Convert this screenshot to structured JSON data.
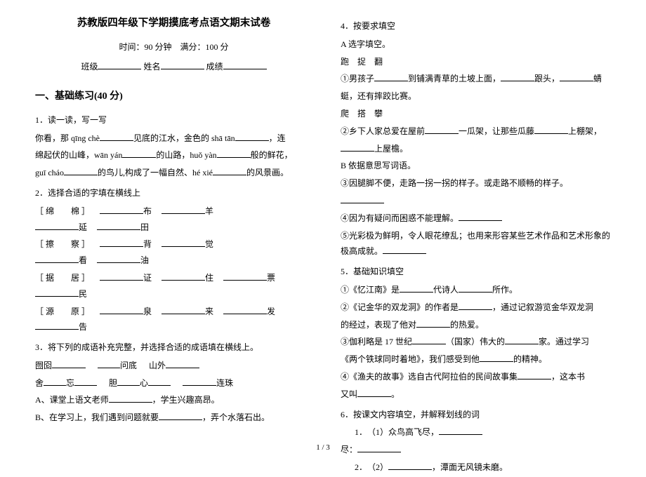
{
  "header": {
    "title": "苏教版四年级下学期摸底考点语文期末试卷",
    "subtitle": "时间：90 分钟　满分：100 分",
    "class_label": "班级",
    "name_label": "姓名",
    "score_label": "成绩"
  },
  "section1": {
    "heading": "一、基础练习(40 分)"
  },
  "q1": {
    "num": "1．读一读，写一写",
    "line1a": "你看，那 qīng chè",
    "line1b": "见底的江水，金色的 shā tān",
    "line1c": "，连",
    "line2a": "绵起伏的山峰，wān yán",
    "line2b": "的山路，huǒ yàn",
    "line2c": "般的鲜花，",
    "line3a": "guī cháo",
    "line3b": "的鸟儿,构成了一幅自然、hé xié",
    "line3c": "的风景画。"
  },
  "q2": {
    "num": "2．选择合适的字填在横线上",
    "r1a": "［ 绵　　棉 ］",
    "r1b": "布",
    "r1c": "羊",
    "r1d": "延",
    "r1e": "田",
    "r2a": "［ 擦　　察 ］",
    "r2b": "背",
    "r2c": "觉",
    "r2d": "看",
    "r2e": "油",
    "r3a": "［ 据　　居 ］",
    "r3b": "证",
    "r3c": "住",
    "r3d": "票",
    "r3e": "民",
    "r4a": "［ 源　　原 ］",
    "r4b": "泉",
    "r4c": "来",
    "r4d": "发",
    "r4e": "告"
  },
  "q3": {
    "num": "3．将下列的成语补充完整，并选择合适的成语填在横线上。",
    "r1a": "囫囵",
    "r1b": "问底",
    "r1c": "山外",
    "r2a": "舍",
    "r2b": "忘",
    "r2c": "胆",
    "r2d": "心",
    "r2e": "连珠",
    "r3": "A、课堂上语文老师",
    "r3b": "，学生兴趣高昂。",
    "r4": "B、在学习上，我们遇到问题就要",
    "r4b": "，弄个水落石出。"
  },
  "q4": {
    "num": "4．按要求填空",
    "a_head": "A 选字填空。",
    "a_l1": "跑　捉　翻",
    "a_l2a": "①男孩子",
    "a_l2b": "到铺满青草的土坡上面，",
    "a_l2c": "跟头，",
    "a_l2d": "蜻",
    "a_l3": "蜓，还有摔跤比赛。",
    "a_l4": "爬　搭　攀",
    "a_l5a": "②乡下人家总爱在屋前",
    "a_l5b": "一瓜架，让那些瓜藤",
    "a_l5c": "上棚架，",
    "a_l6a": "",
    "a_l6b": "上屋檐。",
    "b_head": "B 依据意思写词语。",
    "b_l1": "③因腿脚不便，走路一拐一拐的样子。或走路不顺畅的样子。",
    "b_l3": "④因为有疑问而困惑不能理解。",
    "b_l4": "⑤光彩极为鲜明，令人眼花缭乱；也用来形容某些艺术作品和艺术形象的极高成就。"
  },
  "q5": {
    "num": "5．基础知识填空",
    "l1a": "①《忆江南》是",
    "l1b": "代诗人",
    "l1c": "所作。",
    "l2a": "②《记金华的双龙洞》的作者是",
    "l2b": "，通过记叙游览金华双龙洞",
    "l3a": "的经过，表现了他对",
    "l3b": "的热爱。",
    "l4a": "③伽利略是 17 世纪",
    "l4b": "（国家）伟大的",
    "l4c": "家。通过学习",
    "l5a": "《两个铁球同时着地》，我们感受到他",
    "l5b": "的精神。",
    "l6a": "④《渔夫的故事》选自古代阿拉伯的民间故事集",
    "l6b": "，这本书",
    "l7a": "又叫",
    "l7b": "。"
  },
  "q6": {
    "num": "6．按课文内容填空，并解释划线的词",
    "l1": "1．　（1）众鸟高飞尽，",
    "l2": "尽：",
    "l3": "2．　（2）",
    "l3b": "，潭面无风镜未磨。"
  },
  "footer": "1 / 3"
}
